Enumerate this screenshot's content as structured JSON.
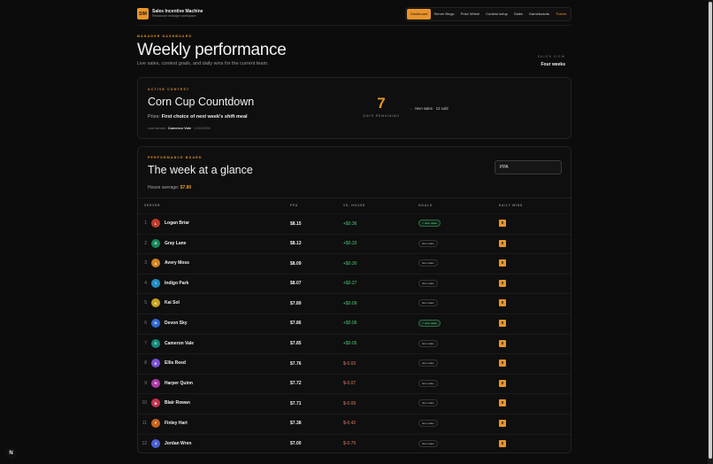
{
  "brand": {
    "logo": "SIM",
    "name": "Sales Incentive Machine",
    "subtitle": "Restaurant manager workspace"
  },
  "nav": [
    "Dashboard",
    "Server Bingo",
    "Prize Wheel",
    "Contest setup",
    "Sales",
    "Gameboards",
    "Theme"
  ],
  "hero": {
    "eyebrow": "MANAGER DASHBOARD",
    "title": "Weekly performance",
    "subtitle": "Live sales, contest goals, and daily wins for the current team.",
    "view_label": "SALES VIEW",
    "view_value": "Four weeks"
  },
  "contest": {
    "eyebrow": "ACTIVE CONTEST",
    "title": "Corn Cup Countdown",
    "prize_label": "Prize:",
    "prize_value": "First choice of next week's shift meal",
    "last_winner_label": "Last winner:",
    "last_winner_name": "Cameron Vale",
    "last_winner_date": "1/10/2026",
    "days_remaining": "7",
    "days_label": "DAYS REMAINING",
    "metric": "Item sales · 12 sold"
  },
  "board": {
    "eyebrow": "PERFORMANCE BOARD",
    "title": "The week at a glance",
    "house_label": "House average:",
    "house_value": "$7.80",
    "select_value": "PPA",
    "columns": {
      "server": "SERVER",
      "ppa": "PPA",
      "vs": "VS. HOUSE",
      "goals": "GOALS",
      "wins": "DAILY WINS"
    },
    "rows": [
      {
        "rank": "1",
        "initial": "L",
        "name": "Logan Briar",
        "ppa": "$8.15",
        "vs": "+$0.36",
        "goal": "✓ Item sales",
        "goal_hit": true,
        "wins": "0",
        "color": "#c0392b"
      },
      {
        "rank": "2",
        "initial": "G",
        "name": "Gray Lane",
        "ppa": "$8.13",
        "vs": "+$0.33",
        "goal": "Item sales",
        "goal_hit": false,
        "wins": "0",
        "color": "#16875a"
      },
      {
        "rank": "3",
        "initial": "A",
        "name": "Avery Moss",
        "ppa": "$8.09",
        "vs": "+$0.30",
        "goal": "Item sales",
        "goal_hit": false,
        "wins": "0",
        "color": "#d4811c"
      },
      {
        "rank": "4",
        "initial": "I",
        "name": "Indigo Park",
        "ppa": "$8.07",
        "vs": "+$0.27",
        "goal": "Item sales",
        "goal_hit": false,
        "wins": "0",
        "color": "#1f8fc4"
      },
      {
        "rank": "5",
        "initial": "K",
        "name": "Kai Sol",
        "ppa": "$7.89",
        "vs": "+$0.09",
        "goal": "Item sales",
        "goal_hit": false,
        "wins": "0",
        "color": "#c9a21a"
      },
      {
        "rank": "6",
        "initial": "D",
        "name": "Devon Sky",
        "ppa": "$7.86",
        "vs": "+$0.06",
        "goal": "✓ Item sales",
        "goal_hit": true,
        "wins": "0",
        "color": "#2f6bd1"
      },
      {
        "rank": "7",
        "initial": "C",
        "name": "Cameron Vale",
        "ppa": "$7.85",
        "vs": "+$0.05",
        "goal": "Item sales",
        "goal_hit": false,
        "wins": "0",
        "color": "#138a7a"
      },
      {
        "rank": "8",
        "initial": "E",
        "name": "Ellis Reed",
        "ppa": "$7.76",
        "vs": "$-0.03",
        "goal": "Item sales",
        "goal_hit": false,
        "wins": "0",
        "color": "#7b4fd6"
      },
      {
        "rank": "9",
        "initial": "H",
        "name": "Harper Quinn",
        "ppa": "$7.72",
        "vs": "$-0.07",
        "goal": "Item sales",
        "goal_hit": false,
        "wins": "0",
        "color": "#b03aa6"
      },
      {
        "rank": "10",
        "initial": "B",
        "name": "Blair Rowan",
        "ppa": "$7.71",
        "vs": "$-0.09",
        "goal": "Item sales",
        "goal_hit": false,
        "wins": "0",
        "color": "#c2344f"
      },
      {
        "rank": "11",
        "initial": "F",
        "name": "Finley Hart",
        "ppa": "$7.38",
        "vs": "$-0.42",
        "goal": "Item sales",
        "goal_hit": false,
        "wins": "0",
        "color": "#c9611c"
      },
      {
        "rank": "12",
        "initial": "J",
        "name": "Jordan Wren",
        "ppa": "$7.00",
        "vs": "$-0.79",
        "goal": "Item sales",
        "goal_hit": false,
        "wins": "0",
        "color": "#4a5fd1"
      }
    ]
  },
  "corner_badge": "N",
  "colors": {
    "accent": "#e8942a",
    "positive": "#4fc977",
    "negative": "#e07a62",
    "background": "#0c0c0c"
  }
}
